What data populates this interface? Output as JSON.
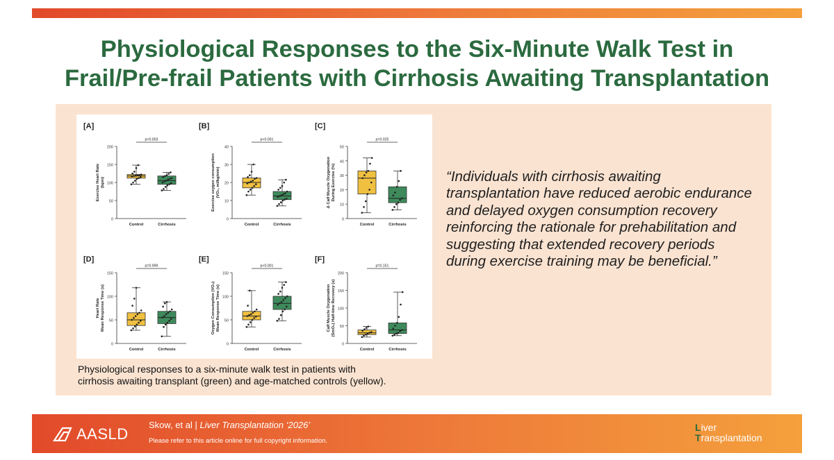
{
  "colors": {
    "title": "#2b6a3f",
    "control_fill": "#f0c041",
    "cirrhosis_fill": "#3e8a5c",
    "bar_gradient_start": "#e24a2a",
    "bar_gradient_end": "#f4a03c",
    "panel_bg": "#fae3d1"
  },
  "title": {
    "line1": "Physiological Responses to the Six-Minute Walk Test in",
    "line2": "Frail/Pre-frail Patients with Cirrhosis Awaiting Transplantation"
  },
  "caption": {
    "line1": "Physiological responses to a six-minute walk test in patients with",
    "line2": "cirrhosis awaiting transplant (green) and age-matched controls (yellow)."
  },
  "quote": "“Individuals with cirrhosis awaiting transplantation have reduced aerobic endurance and delayed oxygen consumption recovery reinforcing the rationale for prehabilitation and suggesting that extended recovery periods during exercise training may be beneficial.”",
  "footer": {
    "logo_text": "AASLD",
    "logo_icon": "aasld-logo-icon",
    "citation_authors": "Skow, et al",
    "separator": "|",
    "journal": "Liver Transplantation",
    "year": "‘2026’",
    "copyright": "Please refer to this article online for full copyright information.",
    "journal_logo_initial1": "L",
    "journal_logo_rest1": "iver",
    "journal_logo_initial2": "T",
    "journal_logo_rest2": "ransplantation"
  },
  "chart_data": [
    {
      "type": "box",
      "panel": "[A]",
      "ylabel": [
        "Exercise Heart Rate",
        "(bpm)"
      ],
      "ylim": [
        0,
        200
      ],
      "yticks": [
        0,
        50,
        100,
        150,
        200
      ],
      "categories": [
        "Control",
        "Cirrhosis"
      ],
      "pvalue": "p=0.003",
      "series": [
        {
          "category": "Control",
          "color": "#f0c041",
          "min": 95,
          "q1": 112,
          "median": 118,
          "q3": 122,
          "max": 148,
          "points": [
            95,
            100,
            105,
            110,
            112,
            115,
            117,
            118,
            119,
            120,
            121,
            122,
            125,
            130,
            140,
            148
          ]
        },
        {
          "category": "Cirrhosis",
          "color": "#3e8a5c",
          "min": 78,
          "q1": 95,
          "median": 105,
          "q3": 118,
          "max": 128,
          "points": [
            78,
            82,
            88,
            92,
            95,
            98,
            100,
            103,
            105,
            108,
            110,
            112,
            115,
            118,
            120,
            124,
            128
          ]
        }
      ]
    },
    {
      "type": "box",
      "panel": "[B]",
      "ylabel": [
        "Exercise oxygen consumption",
        "(VO₂, ml/kg/min)"
      ],
      "ylim": [
        0,
        40
      ],
      "yticks": [
        0,
        10,
        20,
        30,
        40
      ],
      "categories": [
        "Control",
        "Cirrhosis"
      ],
      "pvalue": "p<0.001",
      "series": [
        {
          "category": "Control",
          "color": "#f0c041",
          "min": 13,
          "q1": 17,
          "median": 20,
          "q3": 22.5,
          "max": 30,
          "points": [
            13,
            15,
            16,
            17,
            18,
            19,
            19.5,
            20,
            20.5,
            21,
            22,
            22.5,
            23,
            24,
            26,
            30
          ]
        },
        {
          "category": "Cirrhosis",
          "color": "#3e8a5c",
          "min": 7,
          "q1": 10.5,
          "median": 12.5,
          "q3": 15,
          "max": 21.5,
          "points": [
            7,
            8,
            9,
            10,
            10.5,
            11,
            12,
            12.5,
            13,
            13.5,
            14,
            15,
            16,
            17,
            18,
            20,
            21.5
          ]
        }
      ]
    },
    {
      "type": "box",
      "panel": "[C]",
      "ylabel": [
        "Δ Calf Muscle Oxygenation",
        "During Exercise (%)"
      ],
      "ylim": [
        0,
        50
      ],
      "yticks": [
        0,
        10,
        20,
        30,
        40,
        50
      ],
      "categories": [
        "Control",
        "Cirrhosis"
      ],
      "pvalue": "p=0.025",
      "series": [
        {
          "category": "Control",
          "color": "#f0c041",
          "min": 4,
          "q1": 17,
          "median": 28,
          "q3": 33,
          "max": 42,
          "points": [
            4,
            8,
            12,
            17,
            20,
            25,
            28,
            30,
            32,
            33,
            38,
            42
          ]
        },
        {
          "category": "Cirrhosis",
          "color": "#3e8a5c",
          "min": 6,
          "q1": 11,
          "median": 14,
          "q3": 22,
          "max": 33,
          "points": [
            6,
            8,
            10,
            11,
            13,
            14,
            16,
            18,
            22,
            26,
            33
          ]
        }
      ]
    },
    {
      "type": "box",
      "panel": "[D]",
      "ylabel": [
        "Heart Rate",
        "Mean Response Time (s)"
      ],
      "ylim": [
        0,
        150
      ],
      "yticks": [
        0,
        50,
        100,
        150
      ],
      "categories": [
        "Control",
        "Cirrhosis"
      ],
      "pvalue": "p=0.999",
      "series": [
        {
          "category": "Control",
          "color": "#f0c041",
          "min": 28,
          "q1": 38,
          "median": 50,
          "q3": 65,
          "max": 118,
          "points": [
            28,
            32,
            36,
            40,
            44,
            48,
            50,
            54,
            58,
            62,
            65,
            70,
            80,
            95,
            118
          ]
        },
        {
          "category": "Cirrhosis",
          "color": "#3e8a5c",
          "min": 15,
          "q1": 42,
          "median": 55,
          "q3": 68,
          "max": 88,
          "points": [
            15,
            35,
            40,
            44,
            48,
            52,
            55,
            58,
            62,
            65,
            68,
            72,
            78,
            85,
            88
          ]
        }
      ]
    },
    {
      "type": "box",
      "panel": "[E]",
      "ylabel": [
        "Oxygen Consumption (VO₂)",
        "Mean Response Time (s)"
      ],
      "ylim": [
        0,
        150
      ],
      "yticks": [
        0,
        50,
        100,
        150
      ],
      "categories": [
        "Control",
        "Cirrhosis"
      ],
      "pvalue": "p<0.001",
      "series": [
        {
          "category": "Control",
          "color": "#f0c041",
          "min": 35,
          "q1": 50,
          "median": 58,
          "q3": 68,
          "max": 112,
          "points": [
            35,
            40,
            45,
            50,
            54,
            57,
            58,
            60,
            62,
            65,
            68,
            72,
            80,
            112
          ]
        },
        {
          "category": "Cirrhosis",
          "color": "#3e8a5c",
          "min": 48,
          "q1": 72,
          "median": 85,
          "q3": 100,
          "max": 130,
          "points": [
            48,
            52,
            60,
            68,
            72,
            78,
            82,
            85,
            88,
            92,
            96,
            100,
            105,
            110,
            118,
            124,
            130
          ]
        }
      ]
    },
    {
      "type": "box",
      "panel": "[F]",
      "ylabel": [
        "Calf Muscle Oxygenation",
        "(SmO₂) Half-time Recovery (s)"
      ],
      "ylim": [
        0,
        200
      ],
      "yticks": [
        0,
        50,
        100,
        150,
        200
      ],
      "categories": [
        "Control",
        "Cirrhosis"
      ],
      "pvalue": "p=0.151",
      "series": [
        {
          "category": "Control",
          "color": "#f0c041",
          "min": 18,
          "q1": 25,
          "median": 30,
          "q3": 38,
          "max": 48,
          "points": [
            18,
            22,
            25,
            28,
            30,
            32,
            36,
            40,
            44,
            48
          ]
        },
        {
          "category": "Cirrhosis",
          "color": "#3e8a5c",
          "min": 22,
          "q1": 28,
          "median": 38,
          "q3": 58,
          "max": 145,
          "points": [
            22,
            25,
            28,
            30,
            35,
            38,
            42,
            50,
            58,
            75,
            110,
            145
          ]
        }
      ]
    }
  ]
}
